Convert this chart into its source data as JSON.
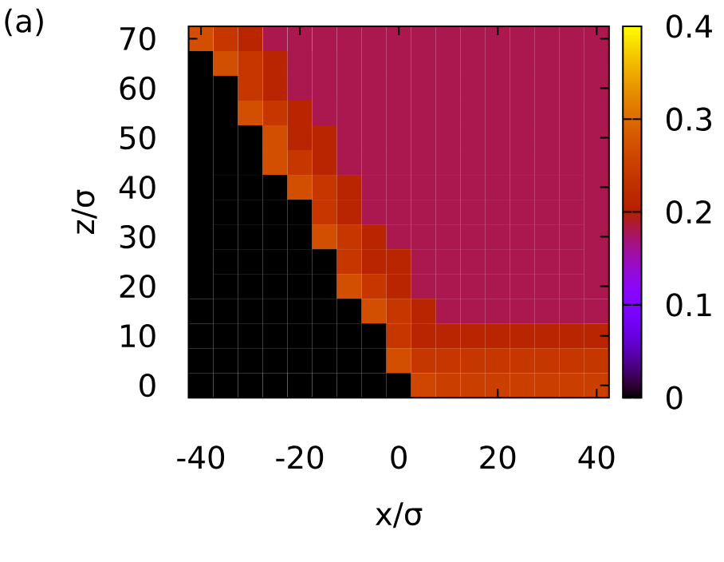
{
  "chart_data": {
    "type": "heatmap",
    "xlabel": "x/σ",
    "ylabel": "z/σ",
    "annotations": [
      "(a)"
    ],
    "categories": [
      "-40",
      null,
      null,
      null,
      "-20",
      null,
      null,
      null,
      "0",
      null,
      null,
      null,
      "20",
      null,
      null,
      null,
      "40"
    ],
    "y_categories": [
      "70",
      null,
      "60",
      null,
      "50",
      null,
      "40",
      null,
      "30",
      null,
      "20",
      null,
      "10",
      null,
      "0"
    ],
    "clim": [
      0,
      0.4
    ],
    "cticks": [
      0,
      0.1,
      0.2,
      0.3,
      0.4
    ],
    "cells": [
      [
        0.27,
        0.24,
        0.21,
        0.18,
        0.18,
        0.18,
        0.18,
        0.18,
        0.18,
        0.18,
        0.18,
        0.18,
        0.18,
        0.18,
        0.18,
        0.18,
        0.18
      ],
      [
        0,
        0.27,
        0.24,
        0.21,
        0.18,
        0.18,
        0.18,
        0.18,
        0.18,
        0.18,
        0.18,
        0.18,
        0.18,
        0.18,
        0.18,
        0.18,
        0.18
      ],
      [
        0,
        0,
        0.24,
        0.21,
        0.18,
        0.18,
        0.18,
        0.18,
        0.18,
        0.18,
        0.18,
        0.18,
        0.18,
        0.18,
        0.18,
        0.18,
        0.18
      ],
      [
        0,
        0,
        0.27,
        0.24,
        0.21,
        0.18,
        0.18,
        0.18,
        0.18,
        0.18,
        0.18,
        0.18,
        0.18,
        0.18,
        0.18,
        0.18,
        0.18
      ],
      [
        0,
        0,
        0,
        0.27,
        0.21,
        0.21,
        0.18,
        0.18,
        0.18,
        0.18,
        0.18,
        0.18,
        0.18,
        0.18,
        0.18,
        0.18,
        0.18
      ],
      [
        0,
        0,
        0,
        0.27,
        0.24,
        0.21,
        0.18,
        0.18,
        0.18,
        0.18,
        0.18,
        0.18,
        0.18,
        0.18,
        0.18,
        0.18,
        0.18
      ],
      [
        0,
        0,
        0,
        0,
        0.27,
        0.24,
        0.21,
        0.18,
        0.18,
        0.18,
        0.18,
        0.18,
        0.18,
        0.18,
        0.18,
        0.18,
        0.18
      ],
      [
        0,
        0,
        0,
        0,
        0,
        0.24,
        0.21,
        0.18,
        0.18,
        0.18,
        0.18,
        0.18,
        0.18,
        0.18,
        0.18,
        0.18,
        0.18
      ],
      [
        0,
        0,
        0,
        0,
        0,
        0.27,
        0.24,
        0.21,
        0.18,
        0.18,
        0.18,
        0.18,
        0.18,
        0.18,
        0.18,
        0.18,
        0.18
      ],
      [
        0,
        0,
        0,
        0,
        0,
        0,
        0.24,
        0.21,
        0.21,
        0.18,
        0.18,
        0.18,
        0.18,
        0.18,
        0.18,
        0.18,
        0.18
      ],
      [
        0,
        0,
        0,
        0,
        0,
        0,
        0.27,
        0.24,
        0.21,
        0.18,
        0.18,
        0.18,
        0.18,
        0.18,
        0.18,
        0.18,
        0.18
      ],
      [
        0,
        0,
        0,
        0,
        0,
        0,
        0,
        0.27,
        0.24,
        0.21,
        0.18,
        0.18,
        0.18,
        0.18,
        0.18,
        0.18,
        0.18
      ],
      [
        0,
        0,
        0,
        0,
        0,
        0,
        0,
        0,
        0.24,
        0.21,
        0.21,
        0.21,
        0.21,
        0.21,
        0.21,
        0.21,
        0.21
      ],
      [
        0,
        0,
        0,
        0,
        0,
        0,
        0,
        0,
        0.27,
        0.24,
        0.24,
        0.24,
        0.24,
        0.24,
        0.24,
        0.24,
        0.24
      ],
      [
        0,
        0,
        0,
        0,
        0,
        0,
        0,
        0,
        0,
        0.26,
        0.25,
        0.25,
        0.25,
        0.25,
        0.25,
        0.25,
        0.25
      ]
    ]
  }
}
